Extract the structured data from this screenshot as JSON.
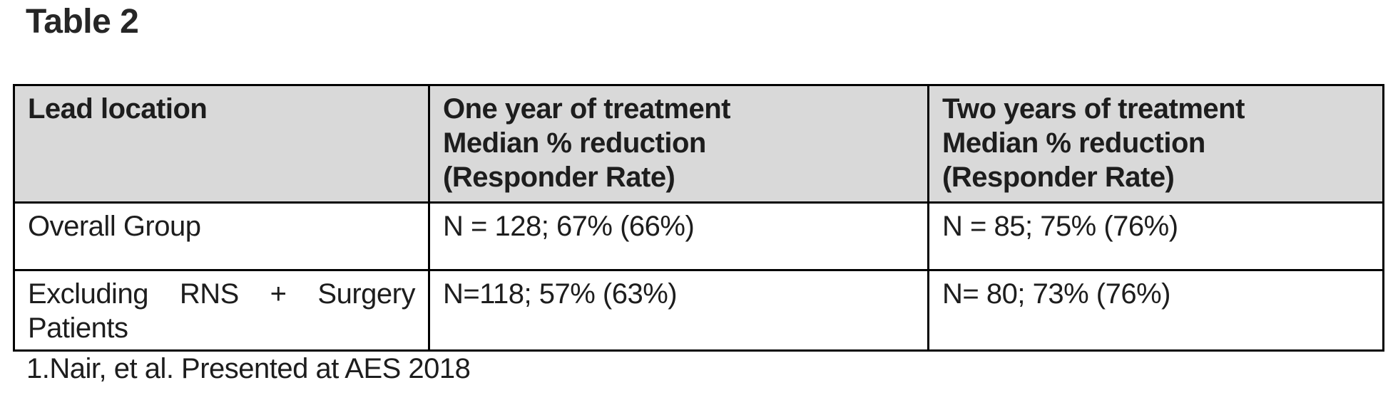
{
  "title": "Table 2",
  "table": {
    "columns": [
      "Lead location",
      "One year of treatment\nMedian % reduction\n(Responder Rate)",
      "Two years of treatment\nMedian % reduction\n(Responder Rate)"
    ],
    "rows": [
      {
        "cells": [
          "Overall Group",
          "N = 128; 67% (66%)",
          "N = 85; 75% (76%)"
        ]
      },
      {
        "cells": [
          "Excluding RNS + Surgery Patients",
          "N=118; 57% (63%)",
          "N= 80; 73% (76%)"
        ]
      }
    ]
  },
  "footnote": "1.Nair, et al. Presented at AES 2018",
  "colors": {
    "header_bg": "#d9d9d9",
    "border": "#000000",
    "text": "#1d1d1d"
  },
  "chart_data": {
    "type": "table",
    "title": "Table 2",
    "columns": [
      "Lead location",
      "One year of treatment Median % reduction (Responder Rate)",
      "Two years of treatment Median % reduction (Responder Rate)"
    ],
    "rows": [
      [
        "Overall Group",
        "N = 128; 67% (66%)",
        "N = 85; 75% (76%)"
      ],
      [
        "Excluding RNS + Surgery Patients",
        "N=118; 57% (63%)",
        "N= 80; 73% (76%)"
      ]
    ],
    "footnote": "1.Nair, et al. Presented at AES 2018"
  }
}
